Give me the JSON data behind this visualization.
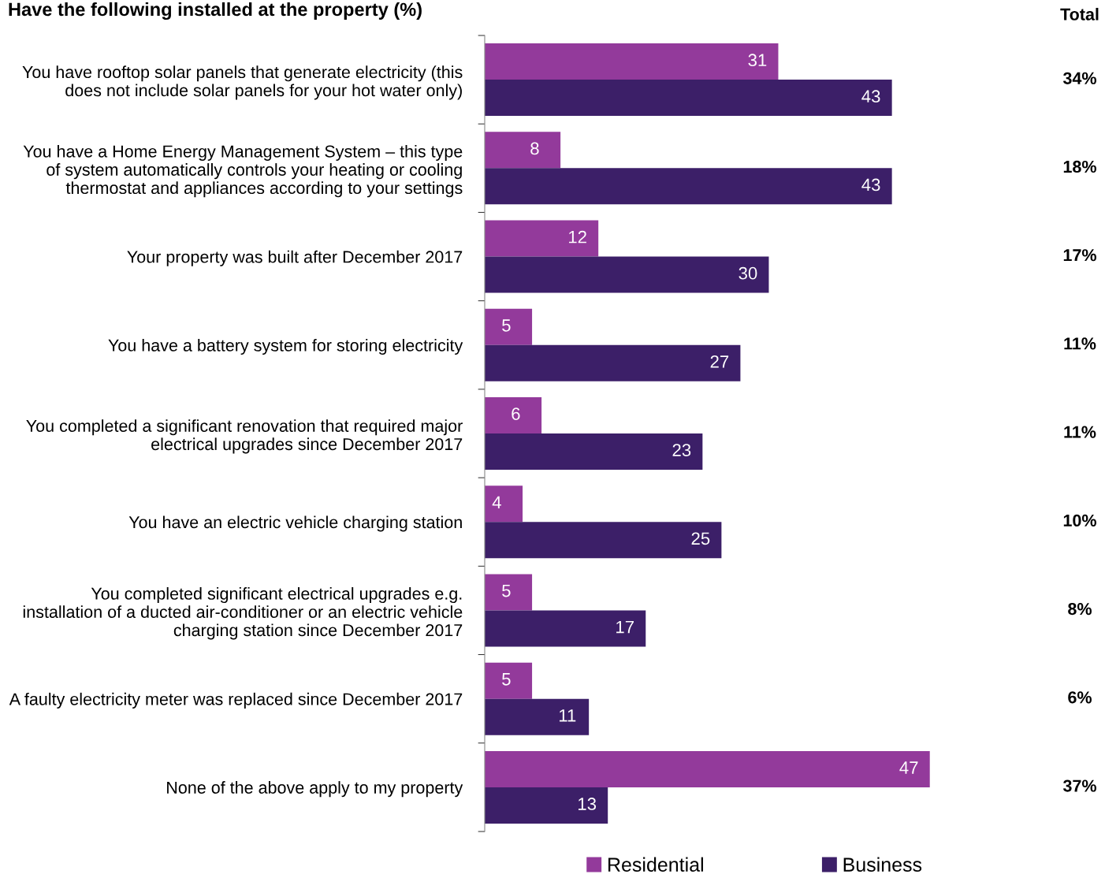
{
  "chart_data": {
    "type": "bar",
    "orientation": "horizontal",
    "title": "Have the following installed at the property (%)",
    "categories": [
      "You have rooftop solar panels that generate electricity (this does not include solar panels for your hot water only)",
      "You have a Home Energy Management System – this type of system automatically controls your heating or cooling thermostat and appliances according to your settings",
      "Your property was built after December 2017",
      "You have a battery system for storing electricity",
      "You completed a significant renovation that required major electrical upgrades since December 2017",
      "You have an electric vehicle charging station",
      "You completed significant electrical upgrades e.g. installation of a ducted air-conditioner or an electric vehicle charging station since December 2017",
      "A faulty electricity meter was replaced since December 2017",
      "None of the above apply to my property"
    ],
    "series": [
      {
        "name": "Residential",
        "color": "#933a9b",
        "values": [
          31,
          8,
          12,
          5,
          6,
          4,
          5,
          5,
          47
        ]
      },
      {
        "name": "Business",
        "color": "#3c1f68",
        "values": [
          43,
          43,
          30,
          27,
          23,
          25,
          17,
          11,
          13
        ]
      }
    ],
    "data_labels": true,
    "legend": "bottom",
    "grid": false,
    "annotations": [
      "Total",
      "34%",
      "18%",
      "17%",
      "11%",
      "11%",
      "10%",
      "8%",
      "6%",
      "37%"
    ]
  }
}
